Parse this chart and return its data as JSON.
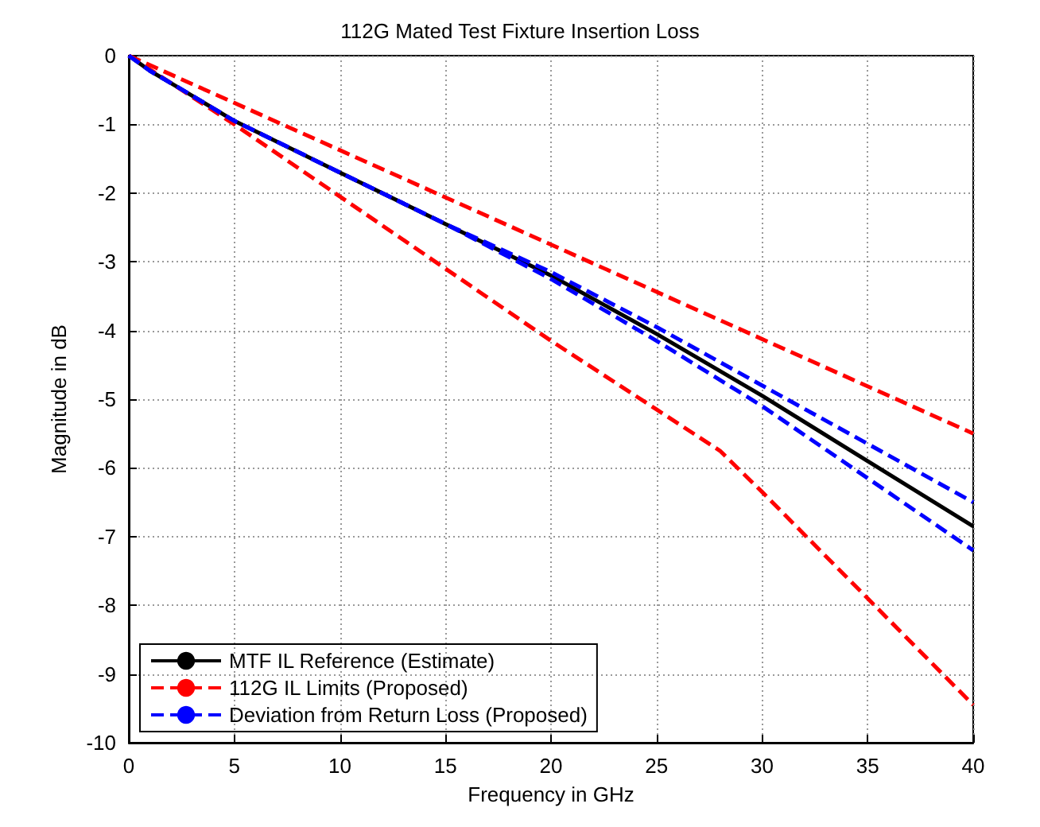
{
  "chart_data": {
    "type": "line",
    "title": "112G Mated Test Fixture Insertion Loss",
    "xlabel": "Frequency in GHz",
    "ylabel": "Magnitude in dB",
    "xlim": [
      0,
      40
    ],
    "xticks": [
      0,
      5,
      10,
      15,
      20,
      25,
      30,
      35,
      40
    ],
    "ylim": [
      -10,
      0
    ],
    "yticks": [
      -10,
      -9,
      -8,
      -7,
      -6,
      -5,
      -4,
      -3,
      -2,
      -1,
      0
    ],
    "grid": true,
    "legend": "bottom left",
    "marker": "none",
    "series": [
      {
        "name": "MTF IL Reference (Estimate)",
        "color": "#000000",
        "line_style": "solid",
        "x": [
          0,
          1,
          2,
          5,
          10,
          15,
          20,
          25,
          30,
          35,
          40
        ],
        "values": [
          0,
          -0.22,
          -0.4,
          -0.95,
          -1.7,
          -2.45,
          -3.2,
          -4.05,
          -4.95,
          -5.9,
          -6.85
        ]
      },
      {
        "name": "112G IL Limits (Proposed)",
        "color": "#ff0000",
        "line_style": "dashed",
        "x": [
          0,
          40
        ],
        "values": [
          0,
          -5.5
        ]
      },
      {
        "color": "#ff0000",
        "line_style": "dashed",
        "x": [
          0,
          5,
          10,
          15,
          20,
          25,
          28,
          30,
          35,
          40
        ],
        "values": [
          0,
          -1,
          -2.05,
          -3.1,
          -4.15,
          -5.15,
          -5.75,
          -6.35,
          -7.9,
          -9.45
        ]
      },
      {
        "name": "Deviation from Return Loss (Proposed)",
        "color": "#0000ff",
        "line_style": "dashed",
        "x": [
          0,
          1,
          2,
          5,
          10,
          15,
          20,
          25,
          30,
          35,
          40
        ],
        "values": [
          0,
          -0.22,
          -0.4,
          -0.95,
          -1.7,
          -2.45,
          -3.15,
          -3.95,
          -4.8,
          -5.65,
          -6.5
        ]
      },
      {
        "color": "#0000ff",
        "line_style": "dashed",
        "x": [
          0,
          1,
          2,
          5,
          10,
          15,
          20,
          25,
          30,
          35,
          40
        ],
        "values": [
          0,
          -0.22,
          -0.4,
          -0.95,
          -1.7,
          -2.45,
          -3.25,
          -4.15,
          -5.1,
          -6.15,
          -7.2
        ]
      }
    ]
  }
}
